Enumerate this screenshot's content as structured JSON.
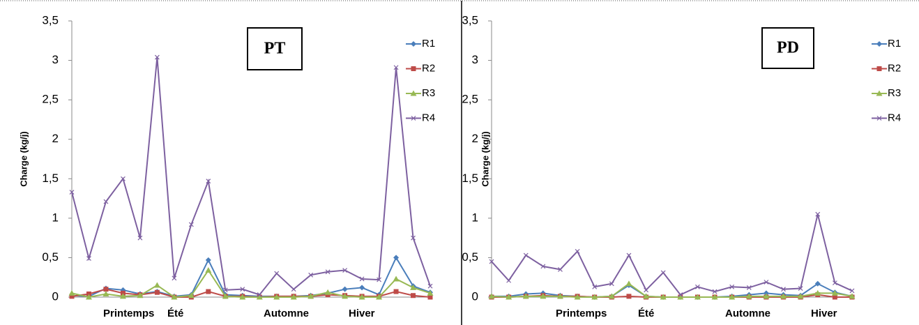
{
  "chart_data": [
    {
      "type": "line",
      "title": "PT",
      "y_label": "Charge (kg/j)",
      "categories": [
        null,
        null,
        null,
        null,
        null,
        null,
        null,
        null,
        null,
        null,
        null,
        null,
        null,
        null,
        null,
        null,
        null,
        null,
        null,
        null,
        null,
        null
      ],
      "season_labels": [
        "Printemps",
        "Été",
        "Automne",
        "Hiver"
      ],
      "ylim": [
        0,
        3.5
      ],
      "yticks": [
        0,
        {
          "value": 0.5,
          "label": "0,5"
        },
        1,
        {
          "value": 1.5,
          "label": "1,5"
        },
        2,
        {
          "value": 2.5,
          "label": "2,5"
        },
        3,
        {
          "value": 3.5,
          "label": "3,5"
        }
      ],
      "series": [
        {
          "name": "R1",
          "color": "#4a7ebb",
          "marker": "diamond",
          "values": [
            0.02,
            0.01,
            0.11,
            0.09,
            0.04,
            0.07,
            0.01,
            0.03,
            0.47,
            0.03,
            0.02,
            0.01,
            0.01,
            0.01,
            0.02,
            0.05,
            0.1,
            0.12,
            0.03,
            0.5,
            0.14,
            0.06
          ]
        },
        {
          "name": "R2",
          "color": "#be4b48",
          "marker": "square",
          "values": [
            0.01,
            0.04,
            0.1,
            0.05,
            0.03,
            0.06,
            0.0,
            0.0,
            0.07,
            0.01,
            0.01,
            0.0,
            0.01,
            0.01,
            0.01,
            0.03,
            0.02,
            0.01,
            0.01,
            0.07,
            0.02,
            0.0
          ]
        },
        {
          "name": "R3",
          "color": "#98b954",
          "marker": "triangle",
          "values": [
            0.05,
            0.0,
            0.04,
            0.01,
            0.02,
            0.15,
            0.0,
            0.02,
            0.34,
            0.01,
            0.0,
            0.0,
            0.0,
            0.0,
            0.01,
            0.06,
            0.01,
            0.0,
            0.0,
            0.23,
            0.12,
            0.05
          ]
        },
        {
          "name": "R4",
          "color": "#7d60a0",
          "marker": "x",
          "values": [
            1.33,
            0.49,
            1.21,
            1.5,
            0.75,
            3.04,
            0.24,
            0.92,
            1.47,
            0.09,
            0.1,
            0.03,
            0.3,
            0.1,
            0.28,
            0.32,
            0.34,
            0.23,
            0.22,
            2.91,
            0.75,
            0.14
          ]
        }
      ]
    },
    {
      "type": "line",
      "title": "PD",
      "y_label": "Charge (kg/j)",
      "categories": [
        null,
        null,
        null,
        null,
        null,
        null,
        null,
        null,
        null,
        null,
        null,
        null,
        null,
        null,
        null,
        null,
        null,
        null,
        null,
        null,
        null,
        null
      ],
      "season_labels": [
        "Printemps",
        "Été",
        "Automne",
        "Hiver"
      ],
      "ylim": [
        0,
        3.5
      ],
      "yticks": [
        0,
        {
          "value": 0.5,
          "label": "0,5"
        },
        1,
        {
          "value": 1.5,
          "label": "1,5"
        },
        2,
        {
          "value": 2.5,
          "label": "2,5"
        },
        3,
        {
          "value": 3.5,
          "label": "3,5"
        }
      ],
      "series": [
        {
          "name": "R1",
          "color": "#4a7ebb",
          "marker": "diamond",
          "values": [
            0.01,
            0.01,
            0.04,
            0.05,
            0.02,
            0.01,
            0.0,
            0.01,
            0.15,
            0.01,
            0.0,
            0.0,
            0.0,
            0.0,
            0.01,
            0.03,
            0.05,
            0.03,
            0.02,
            0.17,
            0.06,
            0.01
          ]
        },
        {
          "name": "R2",
          "color": "#be4b48",
          "marker": "square",
          "values": [
            0.0,
            0.0,
            0.01,
            0.02,
            0.01,
            0.01,
            0.0,
            0.0,
            0.01,
            0.0,
            0.0,
            0.0,
            0.0,
            0.0,
            0.0,
            0.0,
            0.0,
            0.0,
            0.0,
            0.03,
            0.0,
            0.0
          ]
        },
        {
          "name": "R3",
          "color": "#98b954",
          "marker": "triangle",
          "values": [
            0.01,
            0.0,
            0.01,
            0.01,
            0.01,
            0.0,
            0.0,
            0.01,
            0.17,
            0.01,
            0.0,
            0.0,
            0.0,
            0.0,
            0.0,
            0.01,
            0.01,
            0.01,
            0.01,
            0.05,
            0.05,
            0.01
          ]
        },
        {
          "name": "R4",
          "color": "#7d60a0",
          "marker": "x",
          "values": [
            0.45,
            0.21,
            0.53,
            0.39,
            0.35,
            0.58,
            0.13,
            0.17,
            0.53,
            0.09,
            0.31,
            0.03,
            0.13,
            0.07,
            0.13,
            0.12,
            0.19,
            0.1,
            0.11,
            1.05,
            0.18,
            0.08
          ]
        }
      ]
    }
  ]
}
